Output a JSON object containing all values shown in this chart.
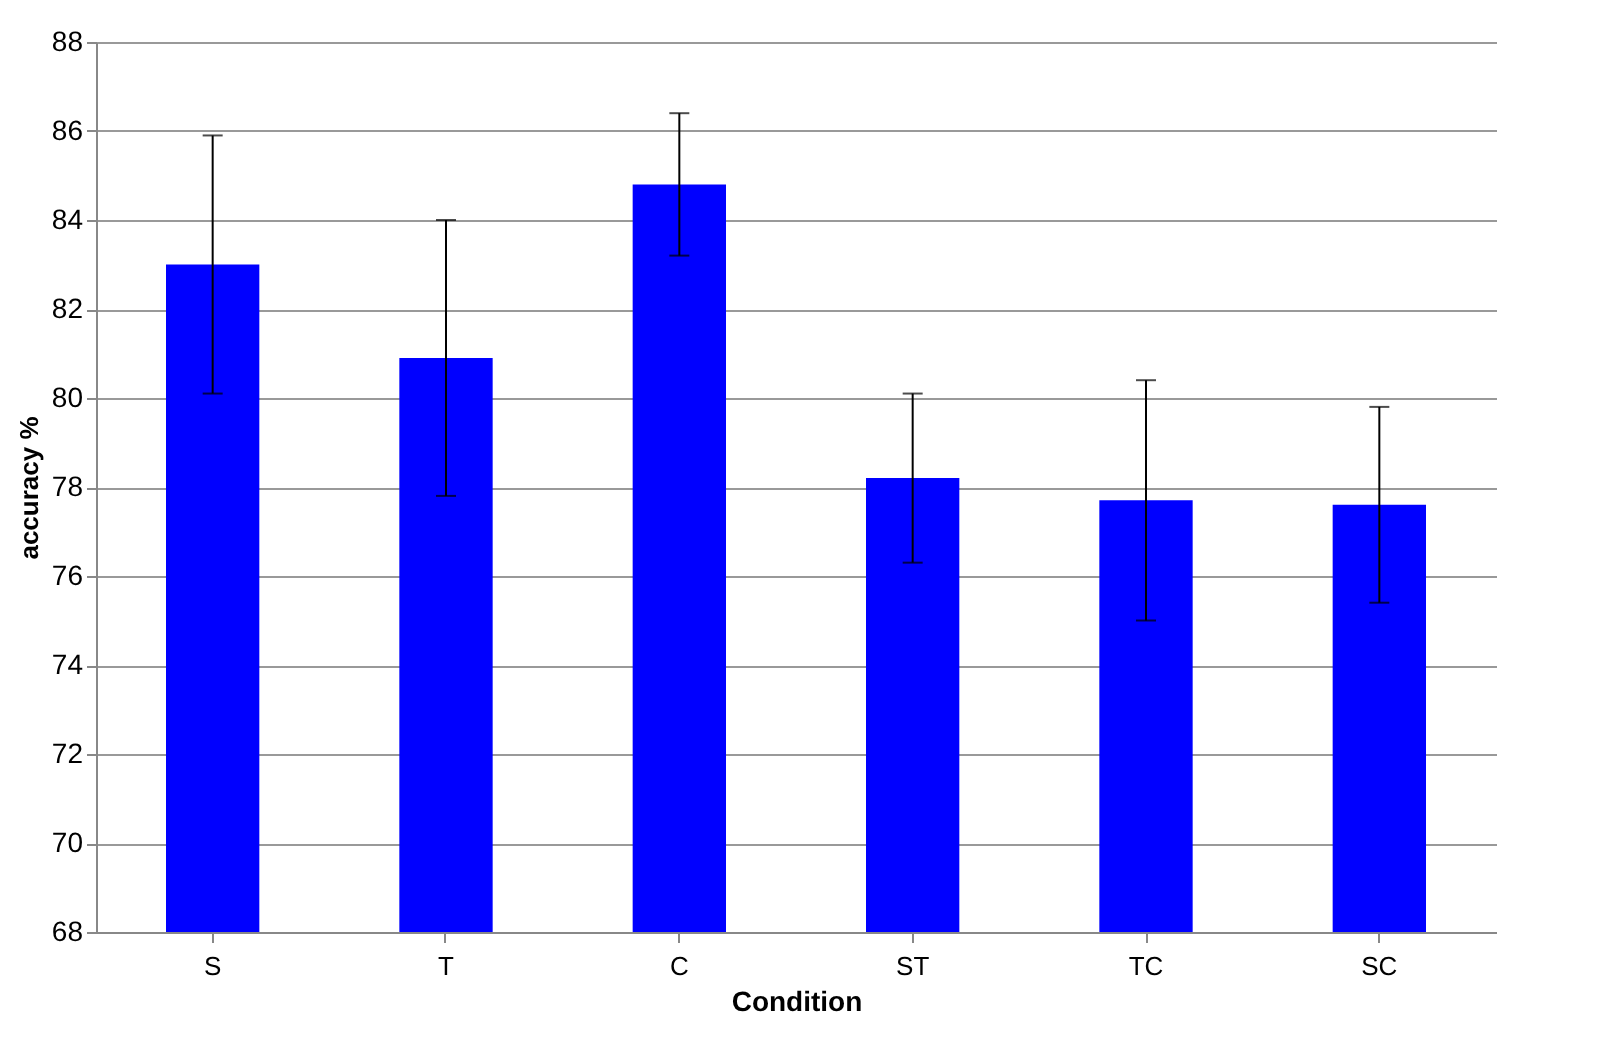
{
  "chart_data": {
    "type": "bar",
    "xlabel": "Condition",
    "ylabel": "accuracy %",
    "categories": [
      "S",
      "T",
      "C",
      "ST",
      "TC",
      "SC"
    ],
    "values": [
      83.0,
      80.9,
      84.8,
      78.2,
      77.7,
      77.6
    ],
    "errors": [
      2.9,
      3.1,
      1.6,
      1.9,
      2.7,
      2.2
    ],
    "color": "#0000ff",
    "ylim": [
      68,
      88
    ],
    "yticks": [
      68,
      70,
      72,
      74,
      76,
      78,
      80,
      82,
      84,
      86,
      88
    ],
    "grid": "y"
  }
}
